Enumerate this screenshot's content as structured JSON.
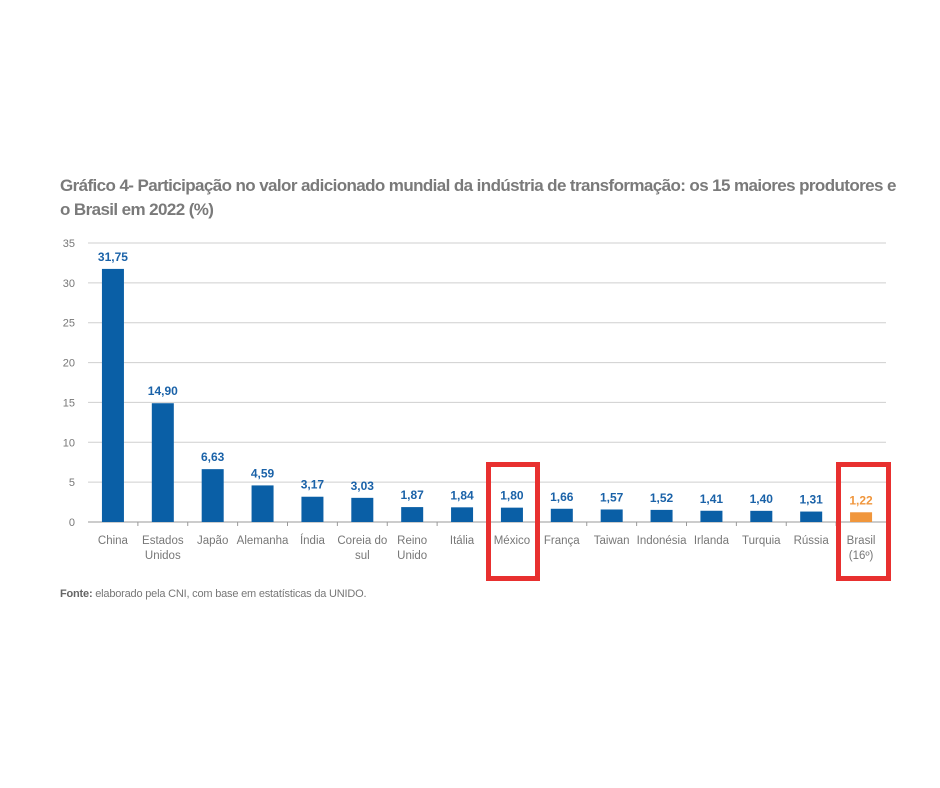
{
  "chart_data": {
    "type": "bar",
    "title": "Gráfico 4- Participação no valor adicionado mundial da indústria de transformação: os 15 maiores produtores e o Brasil em 2022 (%)",
    "categories": [
      [
        "China"
      ],
      [
        "Estados",
        "Unidos"
      ],
      [
        "Japão"
      ],
      [
        "Alemanha"
      ],
      [
        "Índia"
      ],
      [
        "Coreia do",
        "sul"
      ],
      [
        "Reino",
        "Unido"
      ],
      [
        "Itália"
      ],
      [
        "México"
      ],
      [
        "França"
      ],
      [
        "Taiwan"
      ],
      [
        "Indonésia"
      ],
      [
        "Irlanda"
      ],
      [
        "Turquia"
      ],
      [
        "Rússia"
      ],
      [
        "Brasil",
        "(16º)"
      ]
    ],
    "values": [
      31.75,
      14.9,
      6.63,
      4.59,
      3.17,
      3.03,
      1.87,
      1.84,
      1.8,
      1.66,
      1.57,
      1.52,
      1.41,
      1.4,
      1.31,
      1.22
    ],
    "labels": [
      "31,75",
      "14,90",
      "6,63",
      "4,59",
      "3,17",
      "3,03",
      "1,87",
      "1,84",
      "1,80",
      "1,66",
      "1,57",
      "1,52",
      "1,41",
      "1,40",
      "1,31",
      "1,22"
    ],
    "ylim": [
      0,
      35
    ],
    "yticks": [
      0,
      5,
      10,
      15,
      20,
      25,
      30,
      35
    ],
    "grid": true,
    "highlighted": [
      "México",
      "Brasil"
    ],
    "colors": {
      "bar": "#0a5fa6",
      "highlight_bar": "#f0963c",
      "box": "#e8302f"
    }
  },
  "source": {
    "label": "Fonte:",
    "text": " elaborado pela CNI, com base em estatísticas da UNIDO."
  }
}
